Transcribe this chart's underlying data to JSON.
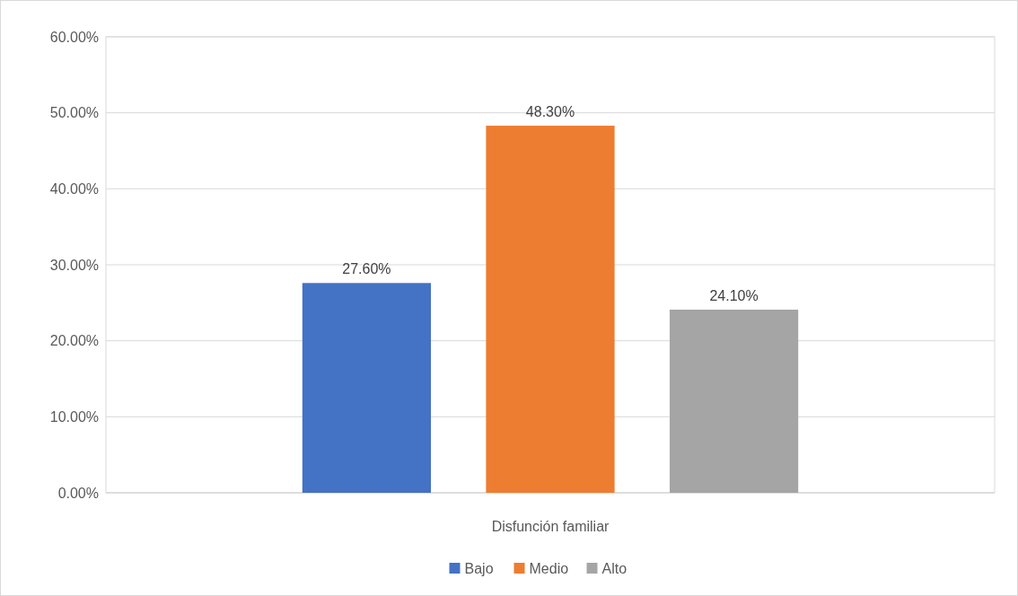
{
  "chart_data": {
    "type": "bar",
    "categories": [
      "Disfunción familiar"
    ],
    "series": [
      {
        "name": "Bajo",
        "color": "#4472c4",
        "values": [
          27.6
        ],
        "value_labels": [
          "27.60%"
        ]
      },
      {
        "name": "Medio",
        "color": "#ed7d31",
        "values": [
          48.3
        ],
        "value_labels": [
          "48.30%"
        ]
      },
      {
        "name": "Alto",
        "color": "#a5a5a5",
        "values": [
          24.1
        ],
        "value_labels": [
          "24.10%"
        ]
      }
    ],
    "ylim": [
      0,
      60
    ],
    "yticks": [
      {
        "value": 0,
        "label": "0.00%"
      },
      {
        "value": 10,
        "label": "10.00%"
      },
      {
        "value": 20,
        "label": "20.00%"
      },
      {
        "value": 30,
        "label": "30.00%"
      },
      {
        "value": 40,
        "label": "40.00%"
      },
      {
        "value": 50,
        "label": "50.00%"
      },
      {
        "value": 60,
        "label": "60.00%"
      }
    ],
    "grid": "y",
    "legend": "bottom"
  }
}
